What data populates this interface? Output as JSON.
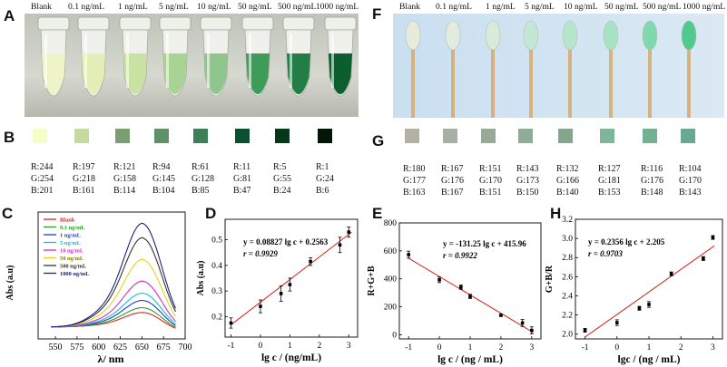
{
  "panel_labels": {
    "A": "A",
    "B": "B",
    "C": "C",
    "D": "D",
    "E": "E",
    "F": "F",
    "G": "G",
    "H": "H"
  },
  "concentrations": [
    "Blank",
    "0.1 ng/mL",
    "1 ng/mL",
    "5 ng/mL",
    "10 ng/mL",
    "50 ng/mL",
    "500 ng/mL",
    "1000 ng/mL"
  ],
  "tube_colors": [
    "#eef4c8",
    "#e3efb6",
    "#c9e2a2",
    "#a9d394",
    "#8ec68b",
    "#3e9b5a",
    "#227e45",
    "#0c5e2e"
  ],
  "swatches_B": [
    {
      "color": "#f4fec9",
      "r": "R:244",
      "g": "G:254",
      "b": "B:201"
    },
    {
      "color": "#c5daa1",
      "r": "R:197",
      "g": "G:218",
      "b": "B:161"
    },
    {
      "color": "#799e72",
      "r": "R:121",
      "g": "G:158",
      "b": "B:114"
    },
    {
      "color": "#5e9168",
      "r": "R:94",
      "g": "G:145",
      "b": "B:104"
    },
    {
      "color": "#3d8055",
      "r": "R:61",
      "g": "G:128",
      "b": "B:85"
    },
    {
      "color": "#0b512f",
      "r": "R:11",
      "g": "G:81",
      "b": "B:47"
    },
    {
      "color": "#053718",
      "r": "R:5",
      "g": "G:55",
      "b": "B:24"
    },
    {
      "color": "#011806",
      "r": "R:1",
      "g": "G:24",
      "b": "B:6"
    }
  ],
  "swab_colors": [
    "#e7ebdc",
    "#e3ebe0",
    "#d9eadb",
    "#c3e7d3",
    "#b5e6cc",
    "#a7e3c3",
    "#7fd9ae",
    "#50c98f"
  ],
  "swatches_G": [
    {
      "color": "#b4b1a3",
      "r": "R:180",
      "g": "G:177",
      "b": "B:163"
    },
    {
      "color": "#a7b0a7",
      "r": "R:167",
      "g": "G:176",
      "b": "B:167"
    },
    {
      "color": "#97aa97",
      "r": "R:151",
      "g": "G:170",
      "b": "B:151"
    },
    {
      "color": "#8fad96",
      "r": "R:143",
      "g": "G:173",
      "b": "B:150"
    },
    {
      "color": "#84a68c",
      "r": "R:132",
      "g": "G:166",
      "b": "B:140"
    },
    {
      "color": "#7fb599",
      "r": "R:127",
      "g": "G:181",
      "b": "B:153"
    },
    {
      "color": "#74b094",
      "r": "R:116",
      "g": "G:176",
      "b": "B:148"
    },
    {
      "color": "#68aa8f",
      "r": "R:104",
      "g": "G:170",
      "b": "B:143"
    }
  ],
  "panel_C": {
    "ylabel": "Abs (a.u)",
    "xlabel": "λ/ nm",
    "xticks": [
      "550",
      "575",
      "600",
      "625",
      "650",
      "675",
      "700"
    ],
    "legend": [
      {
        "label": "Blank",
        "color": "#d62728"
      },
      {
        "label": "0.1 ng/mL",
        "color": "#2ca02c"
      },
      {
        "label": "1  ng/mL",
        "color": "#1f3fbf"
      },
      {
        "label": "5 ng/mL",
        "color": "#17becf"
      },
      {
        "label": "10 ng/mL",
        "color": "#d62ad6"
      },
      {
        "label": "50 ng/mL",
        "color": "#e6d21a"
      },
      {
        "label": "500 ng/mL",
        "color": "#333333"
      },
      {
        "label": "1000 ng/mL",
        "color": "#1a237e"
      }
    ],
    "peaks": [
      0.16,
      0.18,
      0.21,
      0.24,
      0.29,
      0.38,
      0.47,
      0.53
    ]
  },
  "chart_data": [
    {
      "type": "scatter",
      "panel": "D",
      "xlabel": "lg c / (ng/mL)",
      "ylabel": "Abs (a.u)",
      "equation": "y = 0.08827 lg c + 0.2563",
      "r": "r = 0.9929",
      "xlim": [
        -1.2,
        3.3
      ],
      "ylim": [
        0.12,
        0.58
      ],
      "xticks": [
        "-1",
        "0",
        "1",
        "2",
        "3"
      ],
      "yticks": [
        "0.2",
        "0.3",
        "0.4",
        "0.5"
      ],
      "points": [
        {
          "x": -1,
          "y": 0.175,
          "err": 0.02
        },
        {
          "x": 0,
          "y": 0.24,
          "err": 0.025
        },
        {
          "x": 0.7,
          "y": 0.29,
          "err": 0.03
        },
        {
          "x": 1,
          "y": 0.325,
          "err": 0.025
        },
        {
          "x": 1.7,
          "y": 0.415,
          "err": 0.015
        },
        {
          "x": 2.7,
          "y": 0.48,
          "err": 0.03
        },
        {
          "x": 3,
          "y": 0.53,
          "err": 0.02
        }
      ],
      "fit": {
        "slope": 0.08827,
        "intercept": 0.2563
      }
    },
    {
      "type": "scatter",
      "panel": "E",
      "xlabel": "lg c / (ng / mL)",
      "ylabel": "R+G+B",
      "equation": "y = -131.25 lg c + 415.96",
      "r": "r = 0.9922",
      "xlim": [
        -1.3,
        3.3
      ],
      "ylim": [
        -30,
        800
      ],
      "xticks": [
        "-1",
        "0",
        "1",
        "2",
        "3"
      ],
      "yticks": [
        "0",
        "200",
        "400",
        "600",
        "800"
      ],
      "points": [
        {
          "x": -1,
          "y": 573,
          "err": 25
        },
        {
          "x": 0,
          "y": 393,
          "err": 20
        },
        {
          "x": 0.7,
          "y": 340,
          "err": 15
        },
        {
          "x": 1,
          "y": 274,
          "err": 15
        },
        {
          "x": 2,
          "y": 139,
          "err": 8
        },
        {
          "x": 2.7,
          "y": 84,
          "err": 25
        },
        {
          "x": 3,
          "y": 31,
          "err": 25
        }
      ],
      "fit": {
        "slope": -131.25,
        "intercept": 415.96
      }
    },
    {
      "type": "scatter",
      "panel": "H",
      "xlabel": "lgc / (ng / mL)",
      "ylabel": "G+B/R",
      "equation": "y = 0.2356 lg c + 2.205",
      "r": "r = 0.9703",
      "xlim": [
        -1.3,
        3.3
      ],
      "ylim": [
        1.95,
        3.2
      ],
      "xticks": [
        "-1",
        "0",
        "1",
        "2",
        "3"
      ],
      "yticks": [
        "2.0",
        "2.2",
        "2.4",
        "2.6",
        "2.8",
        "3.0",
        "3.2"
      ],
      "points": [
        {
          "x": -1,
          "y": 2.04,
          "err": 0.02
        },
        {
          "x": 0,
          "y": 2.12,
          "err": 0.03
        },
        {
          "x": 0.7,
          "y": 2.27,
          "err": 0.02
        },
        {
          "x": 1,
          "y": 2.31,
          "err": 0.03
        },
        {
          "x": 1.7,
          "y": 2.63,
          "err": 0.02
        },
        {
          "x": 2.7,
          "y": 2.79,
          "err": 0.02
        },
        {
          "x": 3,
          "y": 3.01,
          "err": 0.02
        }
      ],
      "fit": {
        "slope": 0.2356,
        "intercept": 2.205
      }
    }
  ]
}
